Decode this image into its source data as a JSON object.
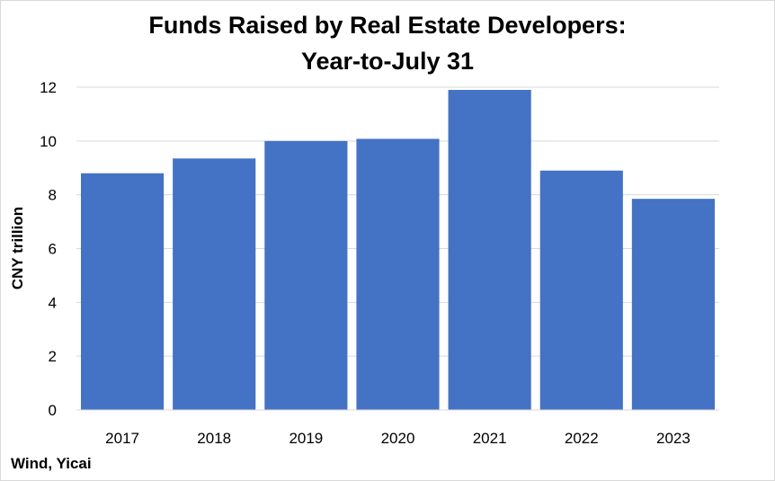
{
  "chart_data": {
    "type": "bar",
    "title_lines": [
      "Funds Raised by Real Estate Developers:",
      "Year-to-July 31"
    ],
    "xlabel": "",
    "ylabel": "CNY trillion",
    "categories": [
      "2017",
      "2018",
      "2019",
      "2020",
      "2021",
      "2022",
      "2023"
    ],
    "values": [
      8.8,
      9.35,
      10.0,
      10.08,
      11.9,
      8.9,
      7.85
    ],
    "ylim": [
      0,
      12
    ],
    "yticks": [
      0,
      2,
      4,
      6,
      8,
      10,
      12
    ],
    "grid": true,
    "legend": "none",
    "bar_color": "#4472C4",
    "grid_color": "#d9d9d9"
  },
  "source": "Wind, Yicai"
}
